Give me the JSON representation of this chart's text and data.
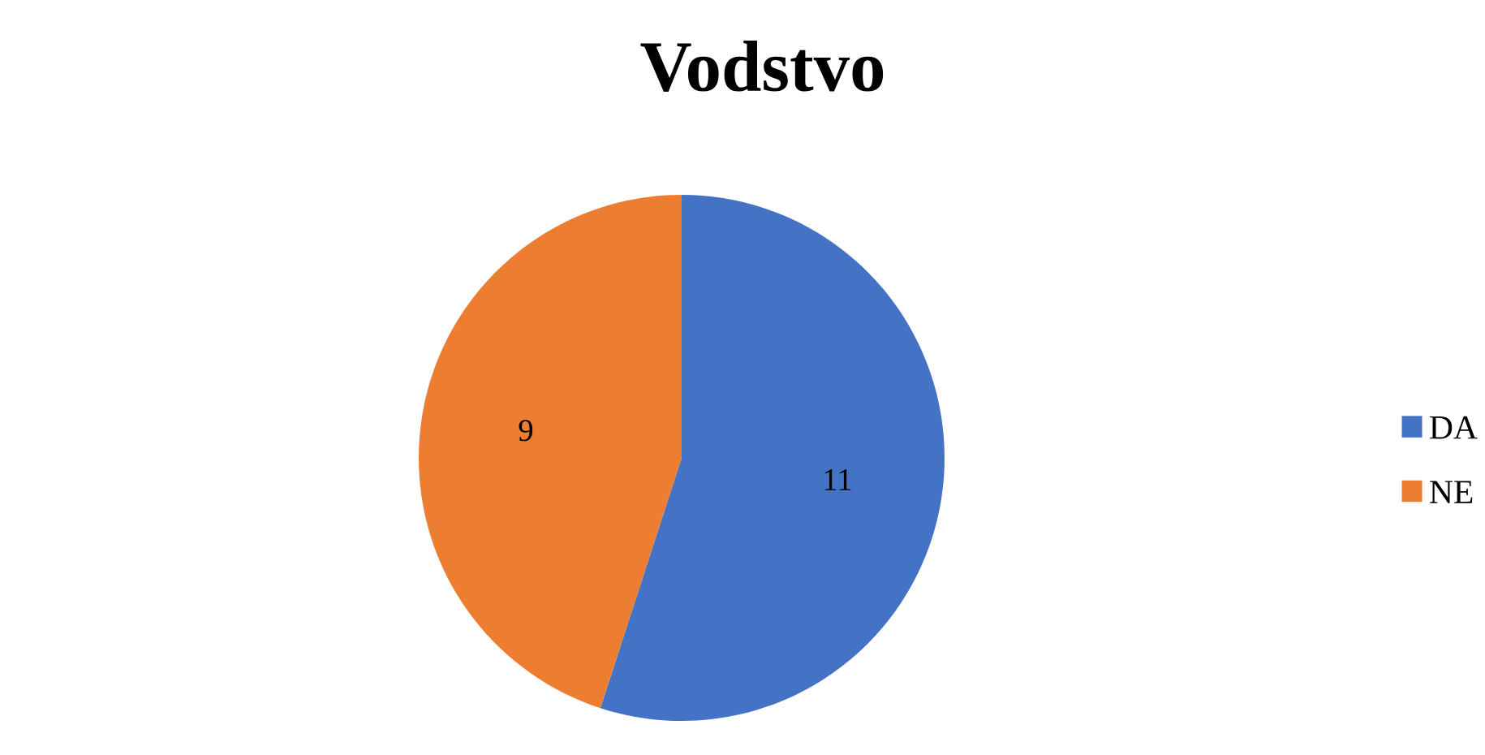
{
  "chart_data": {
    "type": "pie",
    "title": "Vodstvo",
    "categories": [
      "DA",
      "NE"
    ],
    "values": [
      11,
      9
    ],
    "colors": [
      "#4472c4",
      "#ed7d31"
    ],
    "data_labels": true,
    "legend": "right"
  }
}
